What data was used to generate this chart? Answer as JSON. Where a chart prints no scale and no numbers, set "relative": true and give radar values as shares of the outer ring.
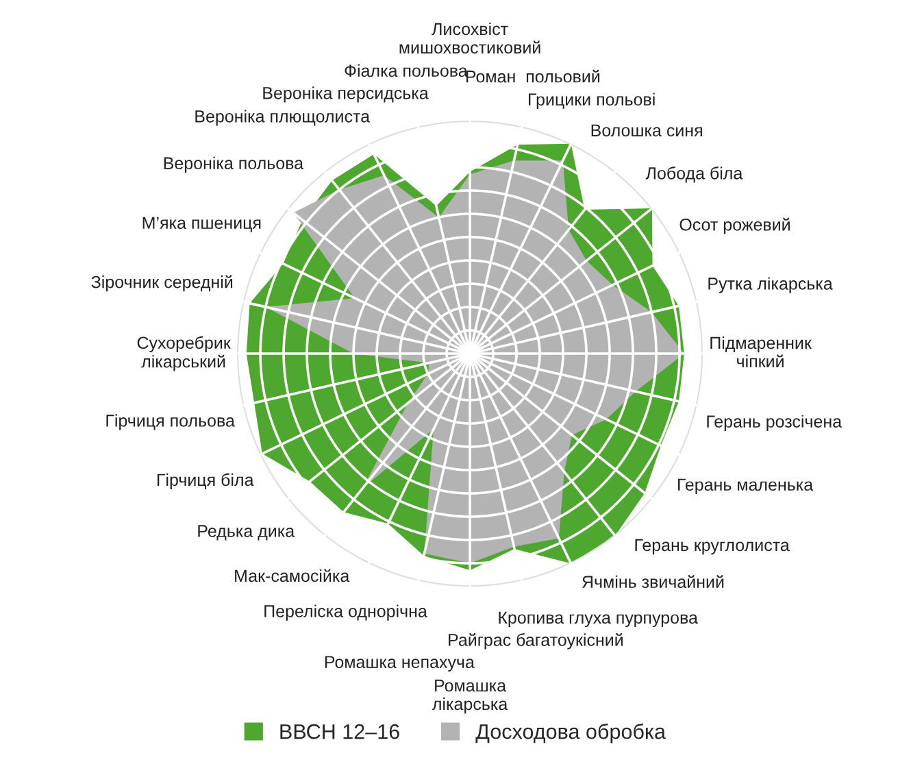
{
  "chart_data": {
    "type": "radar",
    "relative": true,
    "grid": true,
    "legend": "bottom",
    "categories": [
      "Лисохвіст\nмишохвостиковий",
      "Роман  польовий",
      "Грицики польові",
      "Волошка синя",
      "Лобода біла",
      "Осот рожевий",
      "Рутка лікарська",
      "Підмаренник\nчіпкий",
      "Герань розсічена",
      "Герань маленька",
      "Герань круглолиста",
      "Ячмінь звичайний",
      "Кропива глуха пурпурова",
      "Райграс багатоукісний",
      "Ромашка\nлікарська",
      "Ромашка непахуча",
      "Переліска однорічна",
      "Мак-самосійка",
      "Редька дика",
      "Гірчиця біла",
      "Гірчиця польова",
      "Сухоребрик\nлікарський",
      "Зірочник середній",
      "М’яка пшениця",
      "Вероніка польова",
      "Вероніка плющолиста",
      "Вероніка персидська",
      "Фіалка польова"
    ],
    "series": [
      {
        "name": "ВВСН 12–16",
        "color": "#4ea72e",
        "values": [
          0.78,
          0.92,
          1.0,
          0.79,
          1.0,
          0.87,
          0.92,
          0.92,
          0.92,
          0.91,
          0.96,
          1.0,
          1.0,
          0.86,
          0.93,
          0.89,
          0.81,
          0.87,
          0.88,
          0.99,
          0.95,
          0.96,
          0.97,
          0.89,
          0.92,
          0.95,
          0.95,
          0.65
        ]
      },
      {
        "name": "Досходова обробка",
        "color": "#b3b3b3",
        "values": [
          0.77,
          0.85,
          0.92,
          0.68,
          0.64,
          0.68,
          0.8,
          0.92,
          0.73,
          0.65,
          0.56,
          0.65,
          0.88,
          0.85,
          0.9,
          0.88,
          0.36,
          0.74,
          0.34,
          0.2,
          0.18,
          0.5,
          0.9,
          0.55,
          0.97,
          0.9,
          0.85,
          0.6
        ]
      }
    ]
  }
}
